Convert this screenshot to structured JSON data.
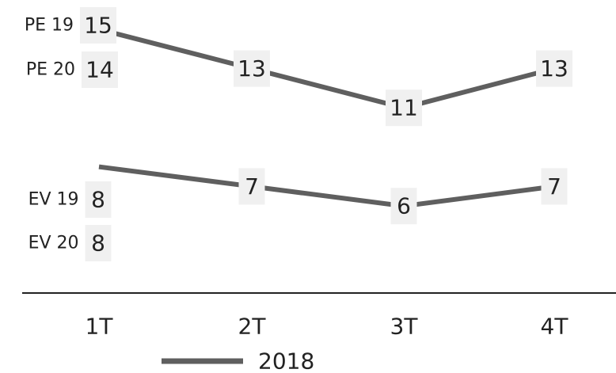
{
  "chart_data": {
    "type": "line",
    "categories": [
      "1T",
      "2T",
      "3T",
      "4T"
    ],
    "series": [
      {
        "name": "2018",
        "values": [
          15,
          13,
          11,
          13
        ],
        "start_labels": [
          "PE 19",
          "PE 20"
        ],
        "start_values": [
          15,
          14
        ]
      },
      {
        "name": "2018",
        "values": [
          8,
          7,
          6,
          7
        ],
        "start_labels": [
          "EV 19",
          "EV 20"
        ],
        "start_values": [
          8,
          8
        ]
      }
    ],
    "legend": {
      "label": "2018",
      "position": "bottom"
    },
    "grid": false,
    "colors": {
      "line": "#5f5f5f",
      "label_box": "#f0f0f0",
      "axis": "#222222",
      "text": "#222222"
    }
  }
}
